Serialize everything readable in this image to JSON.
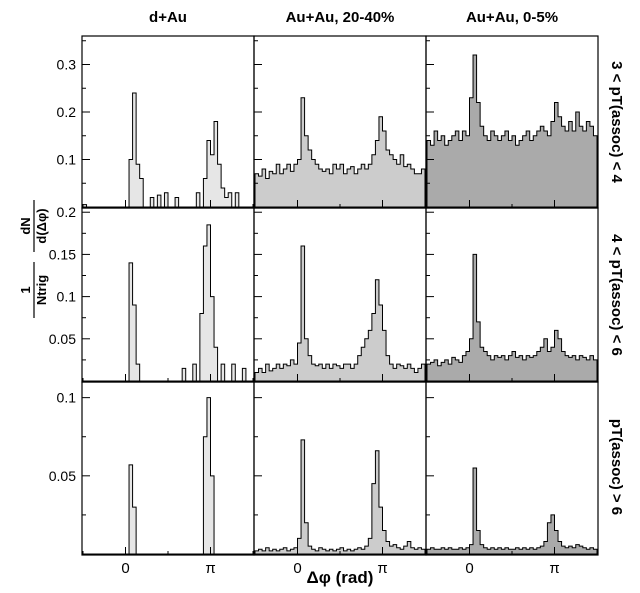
{
  "chart_data": {
    "type": "histogram-grid",
    "columns": [
      "d+Au",
      "Au+Au, 20-40%",
      "Au+Au, 0-5%"
    ],
    "rows": [
      "3 < p_T(assoc) < 4",
      "4 < p_T(assoc) < 6",
      "p_T(assoc) > 6"
    ],
    "row_labels_display": [
      "3 < pT(assoc) < 4",
      "4 < pT(assoc) < 6",
      "pT(assoc) > 6"
    ],
    "xlabel": "Δφ (rad)",
    "ylabel": "1/N_trig dN/d(Δφ)",
    "ylabel_parts": {
      "prefactor_num": "1",
      "prefactor_den": "Ntrig",
      "fraction_num": "dN",
      "fraction_den": "d(Δφ)"
    },
    "xtick_labels": [
      "0",
      "π"
    ],
    "xrange": [
      -1.5708,
      4.7124
    ],
    "bins": 48,
    "fill_colors": [
      "#e6e6e6",
      "#cccccc",
      "#aaaaaa"
    ],
    "ylim_rows": [
      [
        0,
        0.36
      ],
      [
        0,
        0.205
      ],
      [
        0,
        0.11
      ]
    ],
    "yticks_rows": [
      [
        "0.1",
        "0.2",
        "0.3"
      ],
      [
        "0.05",
        "0.1",
        "0.15",
        "0.2"
      ],
      [
        "0.05",
        "0.1"
      ]
    ],
    "panels": [
      [
        {
          "values": [
            0.005,
            0.0,
            0.0,
            0.0,
            0.0,
            0.0,
            0.0,
            0.0,
            0.0,
            0.0,
            0.0,
            0.0,
            0.0,
            0.1,
            0.24,
            0.09,
            0.06,
            0.0,
            0.0,
            0.02,
            0.0,
            0.025,
            0.0,
            0.03,
            0.0,
            0.0,
            0.02,
            0.0,
            0.0,
            0.0,
            0.0,
            0.0,
            0.03,
            0.0,
            0.06,
            0.14,
            0.11,
            0.18,
            0.09,
            0.04,
            0.02,
            0.03,
            0.0,
            0.03,
            0.0,
            0.0,
            0.0,
            0.0
          ]
        },
        {
          "values": [
            0.07,
            0.065,
            0.08,
            0.06,
            0.075,
            0.07,
            0.09,
            0.07,
            0.08,
            0.09,
            0.075,
            0.09,
            0.1,
            0.23,
            0.15,
            0.12,
            0.1,
            0.09,
            0.08,
            0.075,
            0.08,
            0.07,
            0.09,
            0.08,
            0.09,
            0.07,
            0.08,
            0.085,
            0.07,
            0.08,
            0.09,
            0.08,
            0.09,
            0.11,
            0.14,
            0.19,
            0.16,
            0.12,
            0.11,
            0.1,
            0.09,
            0.11,
            0.085,
            0.09,
            0.08,
            0.07,
            0.07,
            0.08
          ]
        },
        {
          "values": [
            0.14,
            0.13,
            0.16,
            0.14,
            0.15,
            0.13,
            0.14,
            0.15,
            0.16,
            0.14,
            0.16,
            0.15,
            0.23,
            0.32,
            0.22,
            0.17,
            0.15,
            0.14,
            0.16,
            0.15,
            0.14,
            0.15,
            0.16,
            0.14,
            0.15,
            0.13,
            0.14,
            0.15,
            0.16,
            0.14,
            0.15,
            0.16,
            0.17,
            0.16,
            0.15,
            0.18,
            0.22,
            0.19,
            0.17,
            0.16,
            0.18,
            0.16,
            0.2,
            0.17,
            0.16,
            0.18,
            0.17,
            0.15
          ]
        }
      ],
      [
        {
          "values": [
            0.0,
            0.0,
            0.0,
            0.0,
            0.0,
            0.0,
            0.0,
            0.0,
            0.0,
            0.0,
            0.0,
            0.0,
            0.0,
            0.14,
            0.09,
            0.02,
            0.0,
            0.0,
            0.0,
            0.0,
            0.0,
            0.0,
            0.0,
            0.0,
            0.0,
            0.0,
            0.0,
            0.0,
            0.015,
            0.0,
            0.0,
            0.02,
            0.0,
            0.08,
            0.16,
            0.185,
            0.1,
            0.04,
            0.0,
            0.02,
            0.0,
            0.0,
            0.02,
            0.0,
            0.0,
            0.015,
            0.0,
            0.0
          ]
        },
        {
          "values": [
            0.01,
            0.015,
            0.01,
            0.02,
            0.012,
            0.015,
            0.02,
            0.015,
            0.02,
            0.018,
            0.025,
            0.02,
            0.045,
            0.16,
            0.05,
            0.03,
            0.02,
            0.018,
            0.02,
            0.015,
            0.02,
            0.015,
            0.02,
            0.018,
            0.015,
            0.02,
            0.02,
            0.015,
            0.02,
            0.03,
            0.04,
            0.05,
            0.06,
            0.08,
            0.12,
            0.09,
            0.06,
            0.03,
            0.02,
            0.015,
            0.02,
            0.018,
            0.015,
            0.02,
            0.015,
            0.01,
            0.015,
            0.02
          ]
        },
        {
          "values": [
            0.02,
            0.022,
            0.025,
            0.018,
            0.022,
            0.025,
            0.02,
            0.028,
            0.025,
            0.022,
            0.03,
            0.035,
            0.05,
            0.15,
            0.07,
            0.04,
            0.035,
            0.03,
            0.025,
            0.03,
            0.028,
            0.03,
            0.025,
            0.03,
            0.035,
            0.028,
            0.03,
            0.025,
            0.03,
            0.028,
            0.03,
            0.035,
            0.04,
            0.05,
            0.035,
            0.04,
            0.06,
            0.05,
            0.035,
            0.03,
            0.028,
            0.03,
            0.025,
            0.03,
            0.028,
            0.025,
            0.03,
            0.025
          ]
        }
      ],
      [
        {
          "values": [
            0.0,
            0.0,
            0.0,
            0.0,
            0.0,
            0.0,
            0.0,
            0.0,
            0.0,
            0.0,
            0.0,
            0.0,
            0.0,
            0.057,
            0.03,
            0.0,
            0.0,
            0.0,
            0.0,
            0.0,
            0.0,
            0.0,
            0.0,
            0.0,
            0.0,
            0.0,
            0.0,
            0.0,
            0.0,
            0.0,
            0.0,
            0.0,
            0.0,
            0.0,
            0.075,
            0.1,
            0.05,
            0.0,
            0.0,
            0.0,
            0.0,
            0.0,
            0.0,
            0.0,
            0.0,
            0.0,
            0.0,
            0.0
          ]
        },
        {
          "values": [
            0.002,
            0.003,
            0.002,
            0.004,
            0.002,
            0.003,
            0.002,
            0.003,
            0.004,
            0.002,
            0.003,
            0.004,
            0.01,
            0.073,
            0.02,
            0.005,
            0.003,
            0.002,
            0.004,
            0.003,
            0.002,
            0.003,
            0.002,
            0.003,
            0.004,
            0.002,
            0.003,
            0.002,
            0.003,
            0.004,
            0.003,
            0.005,
            0.01,
            0.045,
            0.066,
            0.03,
            0.015,
            0.008,
            0.005,
            0.006,
            0.004,
            0.003,
            0.005,
            0.008,
            0.004,
            0.003,
            0.004,
            0.003
          ]
        },
        {
          "values": [
            0.003,
            0.004,
            0.003,
            0.003,
            0.004,
            0.003,
            0.004,
            0.003,
            0.003,
            0.004,
            0.003,
            0.004,
            0.006,
            0.055,
            0.015,
            0.006,
            0.004,
            0.003,
            0.004,
            0.003,
            0.004,
            0.003,
            0.004,
            0.003,
            0.003,
            0.004,
            0.003,
            0.004,
            0.003,
            0.004,
            0.003,
            0.004,
            0.005,
            0.008,
            0.02,
            0.025,
            0.015,
            0.008,
            0.005,
            0.004,
            0.005,
            0.004,
            0.006,
            0.005,
            0.004,
            0.003,
            0.004,
            0.003
          ]
        }
      ]
    ]
  }
}
